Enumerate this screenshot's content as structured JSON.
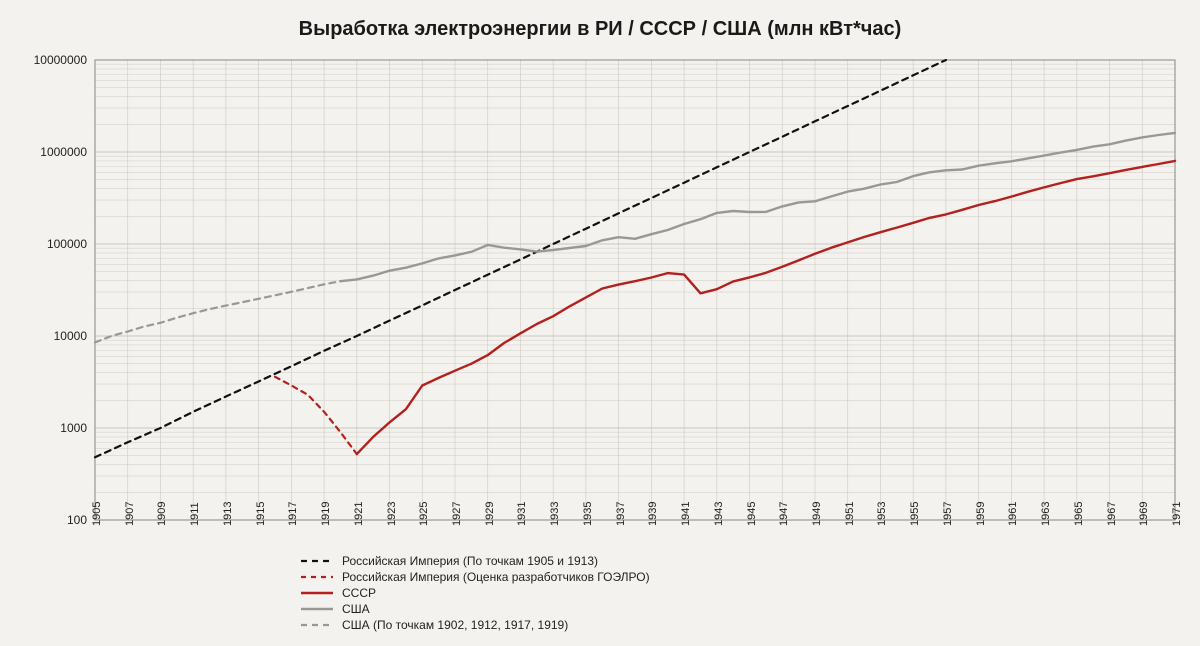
{
  "chart": {
    "type": "line",
    "title": "Выработка электроэнергии в РИ / СССР / США (млн кВт*час)",
    "title_fontsize": 20,
    "background_color": "#f4f2ee",
    "plot_background": "#f4f2ee",
    "grid_color": "#c9c6c0",
    "axis_color": "#8a8782",
    "xlim": [
      1905,
      1971
    ],
    "xtick_step": 2,
    "xtick_labels": [
      "1905",
      "1907",
      "1909",
      "1911",
      "1913",
      "1915",
      "1917",
      "1919",
      "1921",
      "1923",
      "1925",
      "1927",
      "1929",
      "1931",
      "1933",
      "1935",
      "1937",
      "1939",
      "1941",
      "1943",
      "1945",
      "1947",
      "1949",
      "1951",
      "1953",
      "1955",
      "1957",
      "1959",
      "1961",
      "1963",
      "1965",
      "1967",
      "1969",
      "1971"
    ],
    "yscale": "log",
    "ylim": [
      100,
      10000000
    ],
    "ytick_values": [
      100,
      1000,
      10000,
      100000,
      1000000,
      10000000
    ],
    "ytick_labels": [
      "100",
      "1000",
      "10000",
      "100000",
      "1000000",
      "10000000"
    ],
    "label_fontsize": 12,
    "series": [
      {
        "key": "ri_points",
        "label": "Российская Империя (По точкам 1905 и 1913)",
        "color": "#111111",
        "dash": "6,5",
        "width": 2.2,
        "data": [
          [
            1905,
            480
          ],
          [
            1907,
            700
          ],
          [
            1909,
            1000
          ],
          [
            1911,
            1500
          ],
          [
            1913,
            2200
          ],
          [
            1915,
            3200
          ],
          [
            1917,
            4700
          ],
          [
            1919,
            6900
          ],
          [
            1921,
            10000
          ],
          [
            1923,
            14700
          ],
          [
            1925,
            21500
          ],
          [
            1927,
            31600
          ],
          [
            1929,
            46400
          ],
          [
            1931,
            68100
          ],
          [
            1933,
            100000
          ],
          [
            1935,
            146800
          ],
          [
            1937,
            215400
          ],
          [
            1939,
            316200
          ],
          [
            1941,
            464200
          ],
          [
            1943,
            681300
          ],
          [
            1945,
            1000000
          ],
          [
            1947,
            1467800
          ],
          [
            1949,
            2154400
          ],
          [
            1951,
            3162300
          ],
          [
            1953,
            4641600
          ],
          [
            1955,
            6812900
          ],
          [
            1957,
            10000000
          ]
        ]
      },
      {
        "key": "ri_goelro",
        "label": "Российская Империя (Оценка разработчиков ГОЭЛРО)",
        "color": "#b3201d",
        "dash": "5,5",
        "width": 2.2,
        "data": [
          [
            1916,
            3600
          ],
          [
            1917,
            2900
          ],
          [
            1918,
            2300
          ],
          [
            1919,
            1500
          ],
          [
            1920,
            900
          ],
          [
            1921,
            520
          ]
        ]
      },
      {
        "key": "ussr",
        "label": "СССР",
        "color": "#b3201d",
        "dash": null,
        "width": 2.4,
        "data": [
          [
            1921,
            520
          ],
          [
            1922,
            800
          ],
          [
            1923,
            1150
          ],
          [
            1924,
            1600
          ],
          [
            1925,
            2900
          ],
          [
            1926,
            3500
          ],
          [
            1927,
            4200
          ],
          [
            1928,
            5000
          ],
          [
            1929,
            6200
          ],
          [
            1930,
            8400
          ],
          [
            1931,
            10700
          ],
          [
            1932,
            13500
          ],
          [
            1933,
            16400
          ],
          [
            1934,
            21000
          ],
          [
            1935,
            26300
          ],
          [
            1936,
            32800
          ],
          [
            1937,
            36200
          ],
          [
            1938,
            39400
          ],
          [
            1939,
            43200
          ],
          [
            1940,
            48300
          ],
          [
            1941,
            46500
          ],
          [
            1942,
            29100
          ],
          [
            1943,
            32300
          ],
          [
            1944,
            39200
          ],
          [
            1945,
            43300
          ],
          [
            1946,
            48600
          ],
          [
            1947,
            56500
          ],
          [
            1948,
            66300
          ],
          [
            1949,
            78300
          ],
          [
            1950,
            91200
          ],
          [
            1951,
            104000
          ],
          [
            1952,
            119100
          ],
          [
            1953,
            134500
          ],
          [
            1954,
            150600
          ],
          [
            1955,
            170200
          ],
          [
            1956,
            192000
          ],
          [
            1957,
            209700
          ],
          [
            1958,
            235400
          ],
          [
            1959,
            265100
          ],
          [
            1960,
            292300
          ],
          [
            1961,
            327600
          ],
          [
            1962,
            369200
          ],
          [
            1963,
            412100
          ],
          [
            1964,
            458900
          ],
          [
            1965,
            506900
          ],
          [
            1966,
            544900
          ],
          [
            1967,
            587700
          ],
          [
            1968,
            638300
          ],
          [
            1969,
            689200
          ],
          [
            1970,
            740800
          ],
          [
            1971,
            800300
          ]
        ]
      },
      {
        "key": "usa",
        "label": "США",
        "color": "#9a9894",
        "dash": null,
        "width": 2.4,
        "data": [
          [
            1920,
            39400
          ],
          [
            1921,
            41200
          ],
          [
            1922,
            45300
          ],
          [
            1923,
            51200
          ],
          [
            1924,
            55300
          ],
          [
            1925,
            61600
          ],
          [
            1926,
            69800
          ],
          [
            1927,
            75100
          ],
          [
            1928,
            82300
          ],
          [
            1929,
            97500
          ],
          [
            1930,
            91200
          ],
          [
            1931,
            87300
          ],
          [
            1932,
            82700
          ],
          [
            1933,
            85900
          ],
          [
            1934,
            90400
          ],
          [
            1935,
            95100
          ],
          [
            1936,
            109800
          ],
          [
            1937,
            118600
          ],
          [
            1938,
            113800
          ],
          [
            1939,
            127900
          ],
          [
            1940,
            141900
          ],
          [
            1941,
            164900
          ],
          [
            1942,
            186000
          ],
          [
            1943,
            217700
          ],
          [
            1944,
            228500
          ],
          [
            1945,
            222500
          ],
          [
            1946,
            223500
          ],
          [
            1947,
            256000
          ],
          [
            1948,
            283000
          ],
          [
            1949,
            291000
          ],
          [
            1950,
            329000
          ],
          [
            1951,
            371000
          ],
          [
            1952,
            399000
          ],
          [
            1953,
            443000
          ],
          [
            1954,
            472000
          ],
          [
            1955,
            547000
          ],
          [
            1956,
            601000
          ],
          [
            1957,
            632000
          ],
          [
            1958,
            645000
          ],
          [
            1959,
            710000
          ],
          [
            1960,
            753000
          ],
          [
            1961,
            792000
          ],
          [
            1962,
            852000
          ],
          [
            1963,
            914000
          ],
          [
            1964,
            984000
          ],
          [
            1965,
            1055000
          ],
          [
            1966,
            1144000
          ],
          [
            1967,
            1214000
          ],
          [
            1968,
            1329000
          ],
          [
            1969,
            1442000
          ],
          [
            1970,
            1532000
          ],
          [
            1971,
            1614000
          ]
        ]
      },
      {
        "key": "usa_points",
        "label": "США (По точкам 1902, 1912, 1917, 1919)",
        "color": "#9a9894",
        "dash": "6,5",
        "width": 2.2,
        "data": [
          [
            1905,
            8500
          ],
          [
            1906,
            10000
          ],
          [
            1907,
            11200
          ],
          [
            1908,
            12700
          ],
          [
            1909,
            13900
          ],
          [
            1910,
            15800
          ],
          [
            1911,
            17700
          ],
          [
            1912,
            19600
          ],
          [
            1913,
            21400
          ],
          [
            1914,
            23300
          ],
          [
            1915,
            25400
          ],
          [
            1916,
            27700
          ],
          [
            1917,
            30200
          ],
          [
            1918,
            33200
          ],
          [
            1919,
            36500
          ],
          [
            1920,
            39400
          ]
        ]
      }
    ],
    "legend_order": [
      "ri_points",
      "ri_goelro",
      "ussr",
      "usa",
      "usa_points"
    ]
  }
}
